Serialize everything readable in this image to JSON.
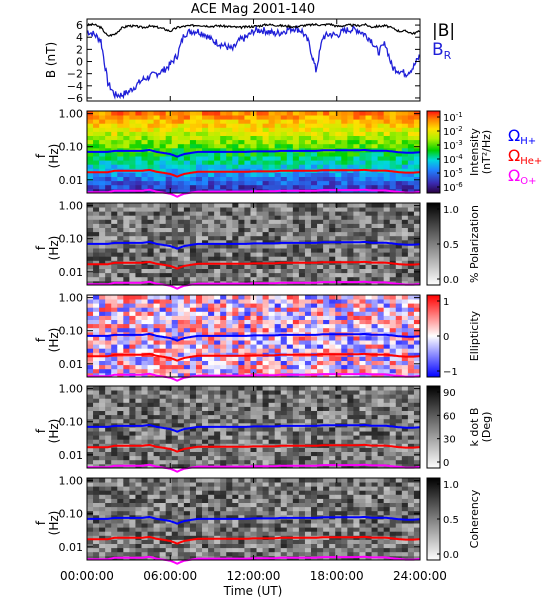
{
  "title": "ACE Mag 2001-140",
  "colors": {
    "bmag": "#000000",
    "br": "#1f1fd8",
    "hplus": "#0000ff",
    "heplus": "#ff0000",
    "oplus": "#ff00ff"
  },
  "x_axis": {
    "label": "Time (UT)",
    "ticks": [
      "00:00:00",
      "06:00:00",
      "12:00:00",
      "18:00:00",
      "24:00:00"
    ],
    "range_hours": [
      0,
      24
    ]
  },
  "freq_axis": {
    "label_top": "f",
    "label_bottom": "(Hz)",
    "ticks": [
      "1.00",
      "0.10",
      "0.01"
    ],
    "range_hz": [
      0.004,
      1.2
    ],
    "scale": "log"
  },
  "legend": {
    "bmag": "|B|",
    "br": "B",
    "br_sub": "R",
    "omega": "Ω",
    "hplus_sub": "H+",
    "heplus_sub": "He+",
    "oplus_sub": "O+"
  },
  "panels": [
    {
      "id": "intensity",
      "cmap": "rainbow",
      "colorbar_label": "Intensity",
      "colorbar_label2": "(nT²/Hz)",
      "colorbar_ticks": [
        {
          "base": "10",
          "exp": "-1"
        },
        {
          "base": "10",
          "exp": "-2"
        },
        {
          "base": "10",
          "exp": "-3"
        },
        {
          "base": "10",
          "exp": "-4"
        },
        {
          "base": "10",
          "exp": "-5"
        },
        {
          "base": "10",
          "exp": "-6"
        }
      ]
    },
    {
      "id": "polarization",
      "cmap": "gray",
      "colorbar_label": "% Polarization",
      "colorbar_label2": "",
      "colorbar_ticks": [
        "1.0",
        "0.5",
        "0.0"
      ]
    },
    {
      "id": "ellipticity",
      "cmap": "bwr",
      "colorbar_label": "Ellipticity",
      "colorbar_label2": "",
      "colorbar_ticks": [
        "1",
        "0",
        "−1"
      ]
    },
    {
      "id": "kdotb",
      "cmap": "gray",
      "colorbar_label": "k dot B",
      "colorbar_label2": "(Deg)",
      "colorbar_ticks": [
        "90",
        "60",
        "30",
        "0"
      ]
    },
    {
      "id": "coherency",
      "cmap": "gray",
      "colorbar_label": "Coherency",
      "colorbar_label2": "",
      "colorbar_ticks": [
        "1.0",
        "0.5",
        "0.0"
      ]
    }
  ],
  "chart_data": {
    "type": "line",
    "title": "ACE Mag 2001-140",
    "xlabel": "Time (UT)",
    "ylabel": "B (nT)",
    "xlim": [
      0,
      24
    ],
    "ylim": [
      -6.5,
      7
    ],
    "y_ticks": [
      "6",
      "4",
      "2",
      "0",
      "−2",
      "−4",
      "−6"
    ],
    "x": [
      0,
      0.5,
      1,
      1.5,
      2,
      2.5,
      3,
      3.5,
      4,
      4.5,
      5,
      5.5,
      6,
      6.5,
      7,
      7.5,
      8,
      8.5,
      9,
      9.5,
      10,
      10.5,
      11,
      11.5,
      12,
      12.5,
      13,
      13.5,
      14,
      14.5,
      15,
      15.5,
      16,
      16.5,
      17,
      17.5,
      18,
      18.5,
      19,
      19.5,
      20,
      20.5,
      21,
      21.5,
      22,
      22.5,
      23,
      23.5,
      24
    ],
    "series": [
      {
        "name": "|B|",
        "values": [
          6,
          6.1,
          5.6,
          4.2,
          4.5,
          5.5,
          5.9,
          5.8,
          5.6,
          5.8,
          5.7,
          5.4,
          5,
          5.6,
          5.8,
          5.9,
          6,
          5.9,
          5.8,
          5.9,
          5.8,
          5.7,
          5.6,
          5.7,
          5.8,
          5.9,
          6.1,
          6,
          5.9,
          5.8,
          5.7,
          5.9,
          6,
          6.1,
          6,
          6.2,
          5.8,
          5.9,
          6,
          5.9,
          6.1,
          5.7,
          5.8,
          5.9,
          5.5,
          5,
          5,
          4.6,
          5
        ]
      },
      {
        "name": "B_R",
        "values": [
          5,
          4.5,
          3.5,
          -3.5,
          -5.5,
          -5.5,
          -5,
          -4,
          -3,
          -2.5,
          -2,
          -1.5,
          -0.5,
          1,
          4.5,
          5,
          5,
          4.5,
          3.5,
          3,
          2.5,
          2,
          3.5,
          4,
          5,
          5.2,
          5,
          4.6,
          4.8,
          5.3,
          5.5,
          5,
          3,
          -1.5,
          4,
          4.5,
          4.3,
          5,
          5.3,
          5.2,
          4.5,
          3.5,
          1.5,
          3,
          -1,
          -1.5,
          -2,
          -1,
          1
        ]
      },
      {
        "name": "Ω H+",
        "values": [
          0.07,
          0.07,
          0.07,
          0.07,
          0.075,
          0.075,
          0.075,
          0.075,
          0.075,
          0.08,
          0.07,
          0.065,
          0.06,
          0.05,
          0.06,
          0.065,
          0.07,
          0.07,
          0.07,
          0.07,
          0.07,
          0.07,
          0.07,
          0.07,
          0.072,
          0.072,
          0.072,
          0.072,
          0.075,
          0.075,
          0.075,
          0.075,
          0.075,
          0.075,
          0.078,
          0.078,
          0.078,
          0.078,
          0.078,
          0.078,
          0.08,
          0.076,
          0.076,
          0.076,
          0.072,
          0.068,
          0.066,
          0.066,
          0.068
        ]
      },
      {
        "name": "Ω He+",
        "values": [
          0.017,
          0.017,
          0.017,
          0.017,
          0.0188,
          0.0188,
          0.0188,
          0.0188,
          0.0188,
          0.02,
          0.0175,
          0.0163,
          0.015,
          0.0125,
          0.015,
          0.0163,
          0.0175,
          0.0175,
          0.0175,
          0.0175,
          0.0175,
          0.0175,
          0.0175,
          0.0175,
          0.018,
          0.018,
          0.018,
          0.018,
          0.0188,
          0.0188,
          0.0188,
          0.0188,
          0.0188,
          0.0188,
          0.0195,
          0.0195,
          0.0195,
          0.0195,
          0.0195,
          0.0195,
          0.02,
          0.019,
          0.019,
          0.019,
          0.018,
          0.017,
          0.0165,
          0.0165,
          0.017
        ]
      },
      {
        "name": "Ω O+",
        "values": [
          0.0042,
          0.0042,
          0.0042,
          0.0042,
          0.0047,
          0.0047,
          0.0047,
          0.0047,
          0.0047,
          0.005,
          0.0044,
          0.0041,
          0.0038,
          0.0031,
          0.0038,
          0.0041,
          0.0044,
          0.0044,
          0.0044,
          0.0044,
          0.0044,
          0.0044,
          0.0044,
          0.0044,
          0.0045,
          0.0045,
          0.0045,
          0.0045,
          0.0047,
          0.0047,
          0.0047,
          0.0047,
          0.0047,
          0.0047,
          0.0049,
          0.0049,
          0.0049,
          0.0049,
          0.0049,
          0.0049,
          0.005,
          0.0048,
          0.0048,
          0.0048,
          0.0045,
          0.0043,
          0.0041,
          0.0041,
          0.0043
        ]
      }
    ]
  }
}
